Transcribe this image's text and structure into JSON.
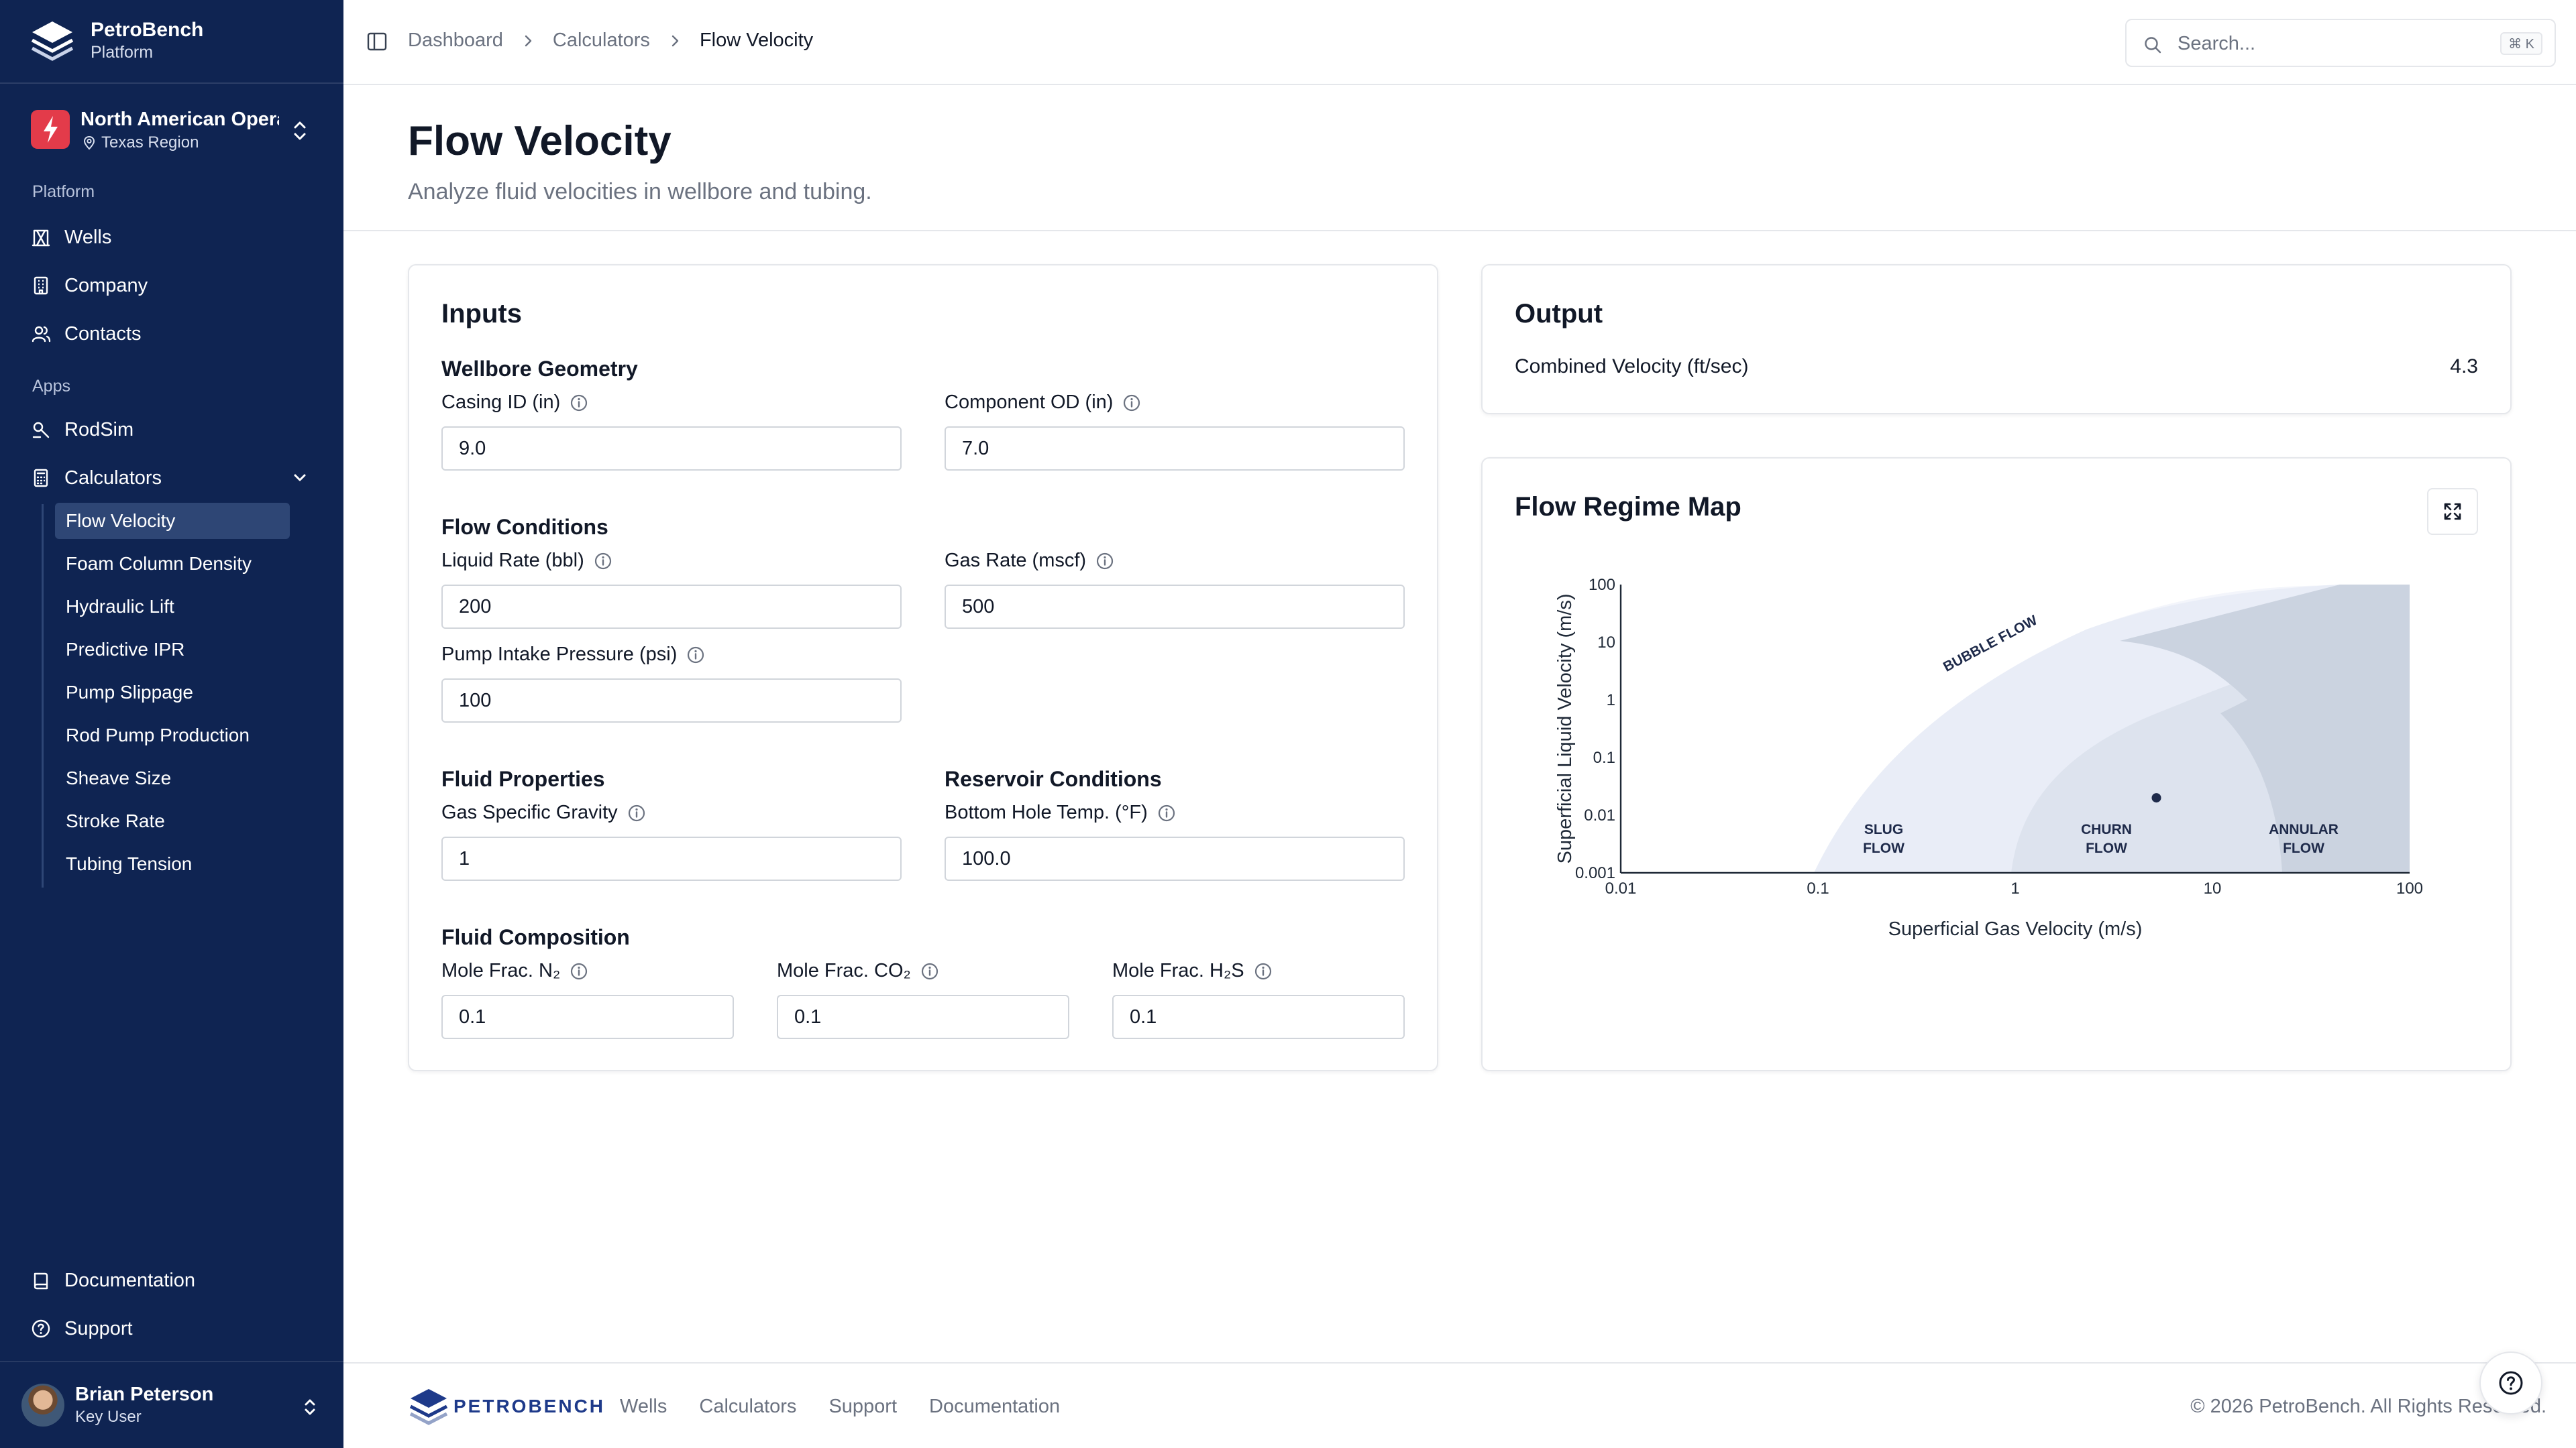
{
  "brand": {
    "name": "PetroBench",
    "subtitle": "Platform"
  },
  "org": {
    "name": "North American Operations",
    "region": "Texas Region"
  },
  "sidebar": {
    "section_platform": "Platform",
    "platform_items": [
      {
        "label": "Wells",
        "icon": "wells-icon"
      },
      {
        "label": "Company",
        "icon": "building-icon"
      },
      {
        "label": "Contacts",
        "icon": "users-icon"
      }
    ],
    "section_apps": "Apps",
    "apps_items": [
      {
        "label": "RodSim",
        "icon": "rodsim-icon"
      },
      {
        "label": "Calculators",
        "icon": "calculator-icon",
        "expanded": true
      }
    ],
    "calculators": [
      "Flow Velocity",
      "Foam Column Density",
      "Hydraulic Lift",
      "Predictive IPR",
      "Pump Slippage",
      "Rod Pump Production",
      "Sheave Size",
      "Stroke Rate",
      "Tubing Tension"
    ],
    "active_calculator": "Flow Velocity",
    "bottom_items": [
      {
        "label": "Documentation",
        "icon": "book-icon"
      },
      {
        "label": "Support",
        "icon": "help-icon"
      }
    ]
  },
  "user": {
    "name": "Brian Peterson",
    "role": "Key User"
  },
  "topbar": {
    "breadcrumb": [
      "Dashboard",
      "Calculators",
      "Flow Velocity"
    ],
    "search_placeholder": "Search...",
    "search_shortcut": "⌘ K"
  },
  "page": {
    "title": "Flow Velocity",
    "subtitle": "Analyze fluid velocities in wellbore and tubing."
  },
  "inputs": {
    "title": "Inputs",
    "wellbore": {
      "title": "Wellbore Geometry",
      "casing_label": "Casing ID (in)",
      "casing_value": "9.0",
      "component_label": "Component OD (in)",
      "component_value": "7.0"
    },
    "flow": {
      "title": "Flow Conditions",
      "liquid_label": "Liquid Rate (bbl)",
      "liquid_value": "200",
      "gas_label": "Gas Rate (mscf)",
      "gas_value": "500",
      "pip_label": "Pump Intake Pressure (psi)",
      "pip_value": "100"
    },
    "fluid": {
      "title": "Fluid Properties",
      "sg_label": "Gas Specific Gravity",
      "sg_value": "1"
    },
    "reservoir": {
      "title": "Reservoir Conditions",
      "bht_label": "Bottom Hole Temp. (°F)",
      "bht_value": "100.0"
    },
    "composition": {
      "title": "Fluid Composition",
      "n2_label": "Mole Frac. N₂",
      "n2_value": "0.1",
      "co2_label": "Mole Frac. CO₂",
      "co2_value": "0.1",
      "h2s_label": "Mole Frac. H₂S",
      "h2s_value": "0.1"
    }
  },
  "output": {
    "title": "Output",
    "combined_label": "Combined Velocity (ft/sec)",
    "combined_value": "4.3"
  },
  "regime_map": {
    "title": "Flow Regime Map"
  },
  "chart_data": {
    "type": "scatter",
    "xlabel": "Superficial Gas Velocity (m/s)",
    "ylabel": "Superficial Liquid Velocity (m/s)",
    "x_scale": "log",
    "y_scale": "log",
    "xlim": [
      0.01,
      100
    ],
    "ylim": [
      0.001,
      100
    ],
    "x_ticks": [
      "0.01",
      "0.1",
      "1",
      "10",
      "100"
    ],
    "y_ticks": [
      "0.001",
      "0.01",
      "0.1",
      "1",
      "10",
      "100"
    ],
    "regions": [
      {
        "name": "BUBBLE FLOW",
        "lines": [
          "BUBBLE FLOW"
        ],
        "color": "#f3f5fb"
      },
      {
        "name": "SLUG FLOW",
        "lines": [
          "SLUG",
          "FLOW"
        ],
        "color": "#e9edf7"
      },
      {
        "name": "CHURN FLOW",
        "lines": [
          "CHURN",
          "FLOW"
        ],
        "color": "#dde3ee"
      },
      {
        "name": "ANNULAR FLOW",
        "lines": [
          "ANNULAR",
          "FLOW"
        ],
        "color": "#cbd3e0"
      }
    ],
    "point": {
      "x": 5.2,
      "y": 0.02
    },
    "grid": false
  },
  "footer": {
    "brand": "PETROBENCH",
    "links": [
      "Wells",
      "Calculators",
      "Support",
      "Documentation"
    ],
    "copyright": "© 2026 PetroBench. All Rights Reserved."
  },
  "colors": {
    "sidebar": "#0f2452",
    "accent": "#1e3a8a",
    "border": "#e5e7eb"
  }
}
